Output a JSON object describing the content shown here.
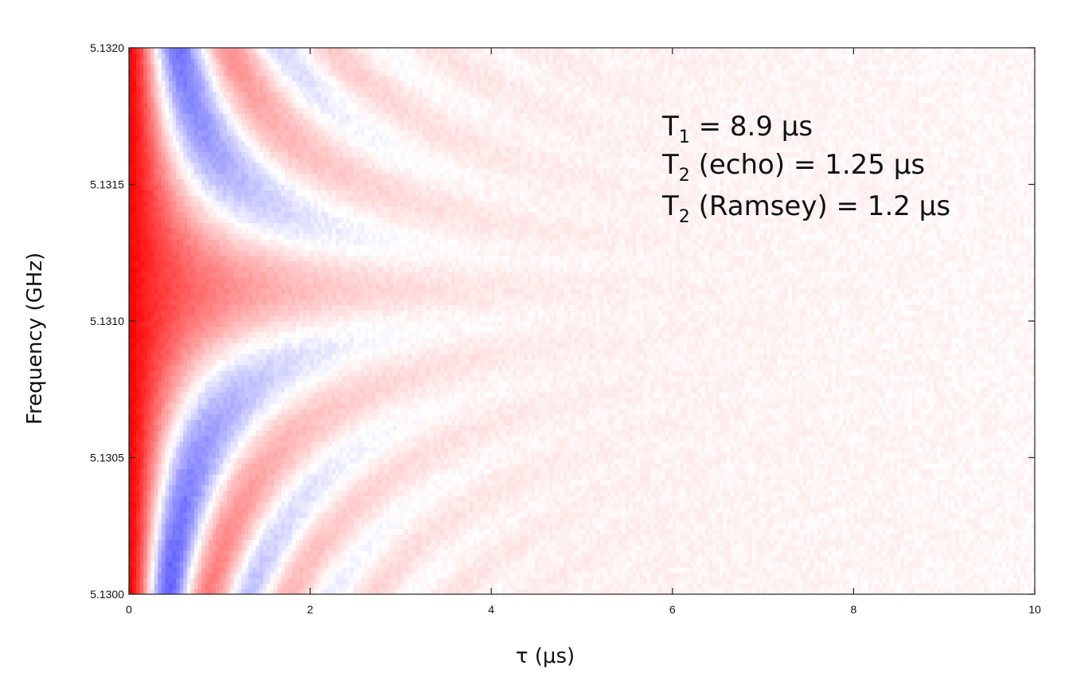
{
  "chart_data": {
    "type": "heatmap",
    "title": "",
    "xlabel": "τ (μs)",
    "ylabel": "Frequency (GHz)",
    "xlim": [
      0,
      10
    ],
    "ylim": [
      5.13,
      5.132
    ],
    "x_ticks": [
      0,
      2,
      4,
      6,
      8,
      10
    ],
    "x_tick_labels": [
      "0",
      "2",
      "4",
      "6",
      "8",
      "10"
    ],
    "y_ticks": [
      5.13,
      5.1305,
      5.131,
      5.1315,
      5.132
    ],
    "y_tick_labels": [
      "5.1300",
      "5.1305",
      "5.1310",
      "5.1315",
      "5.1320"
    ],
    "colormap": {
      "positive": "#ff0000",
      "zero": "#ffffff",
      "negative": "#0000ff"
    },
    "model": {
      "description": "Ramsey fringes: amplitude envelope times cos(2*pi*detuning*tau), red positive, blue negative",
      "center_frequency_GHz": 5.13112,
      "decay_time_us": 1.2,
      "offset": 0.09,
      "grid": {
        "nx": 250,
        "ny": 100
      }
    },
    "annotations": [
      {
        "base": "T",
        "sub": "1",
        "text": " = 8.9 μs"
      },
      {
        "base": "T",
        "sub": "2",
        "text": " (echo) = 1.25 μs"
      },
      {
        "base": "T",
        "sub": "2",
        "text": " (Ramsey) = 1.2 μs"
      }
    ],
    "grid": false,
    "legend": "none"
  }
}
